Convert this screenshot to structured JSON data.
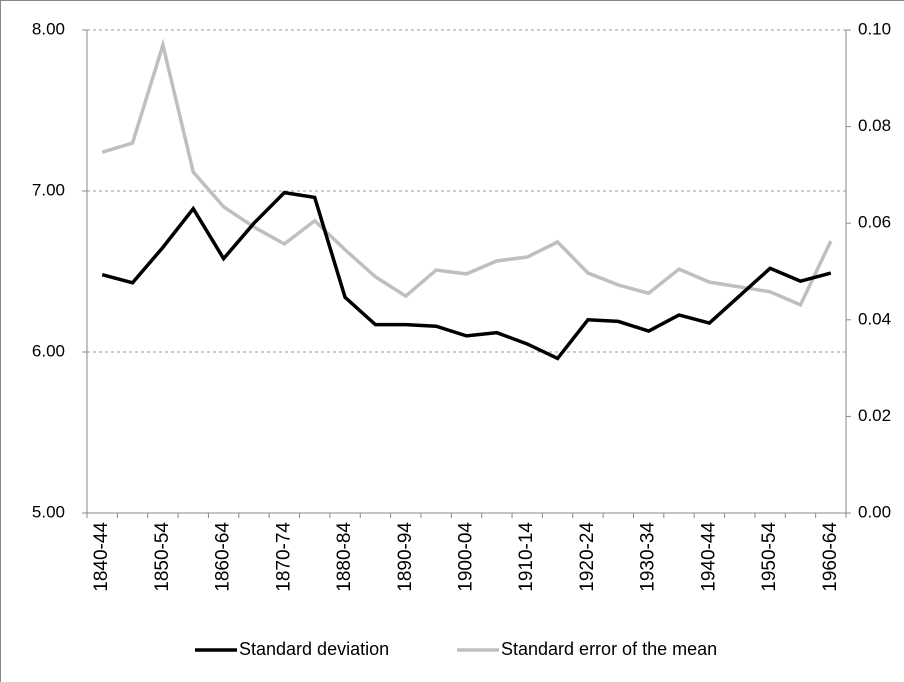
{
  "chart_data": {
    "type": "line",
    "categories": [
      "1840-44",
      null,
      "1850-54",
      null,
      "1860-64",
      null,
      "1870-74",
      null,
      "1880-84",
      null,
      "1890-94",
      null,
      "1900-04",
      null,
      "1910-14",
      null,
      "1920-24",
      null,
      "1930-34",
      null,
      "1940-44",
      null,
      "1950-54",
      null,
      "1960-64"
    ],
    "series": [
      {
        "name": "Standard deviation",
        "color": "#000000",
        "axis": "y",
        "values": [
          6.48,
          6.43,
          6.65,
          6.89,
          6.58,
          6.8,
          6.99,
          6.96,
          6.34,
          6.17,
          6.17,
          6.16,
          6.1,
          6.12,
          6.05,
          5.96,
          6.2,
          6.19,
          6.13,
          6.23,
          6.18,
          6.35,
          6.52,
          6.44,
          6.49
        ]
      },
      {
        "name": "Standard error of the mean",
        "color": "#bfbfbf",
        "axis": "y2",
        "values": [
          0.0747,
          0.0766,
          0.0969,
          0.0706,
          0.0634,
          0.0592,
          0.0557,
          0.0605,
          0.0545,
          0.0489,
          0.0449,
          0.0503,
          0.0495,
          0.0522,
          0.053,
          0.0561,
          0.0497,
          0.0472,
          0.0455,
          0.0505,
          0.0478,
          0.0468,
          0.0458,
          0.0431,
          0.0563
        ]
      }
    ],
    "ylim": [
      5,
      8
    ],
    "yticks": [
      {
        "value": 5,
        "label": "5.00"
      },
      {
        "value": 6,
        "label": "6.00"
      },
      {
        "value": 7,
        "label": "7.00"
      },
      {
        "value": 8,
        "label": "8.00"
      }
    ],
    "y2lim": [
      0,
      0.1
    ],
    "y2ticks": [
      {
        "value": 0,
        "label": "0.00"
      },
      {
        "value": 0.02,
        "label": "0.02"
      },
      {
        "value": 0.04,
        "label": "0.04"
      },
      {
        "value": 0.06,
        "label": "0.06"
      },
      {
        "value": 0.08,
        "label": "0.08"
      },
      {
        "value": 0.1,
        "label": "0.10"
      }
    ],
    "grid": true,
    "legend": "bottom"
  }
}
